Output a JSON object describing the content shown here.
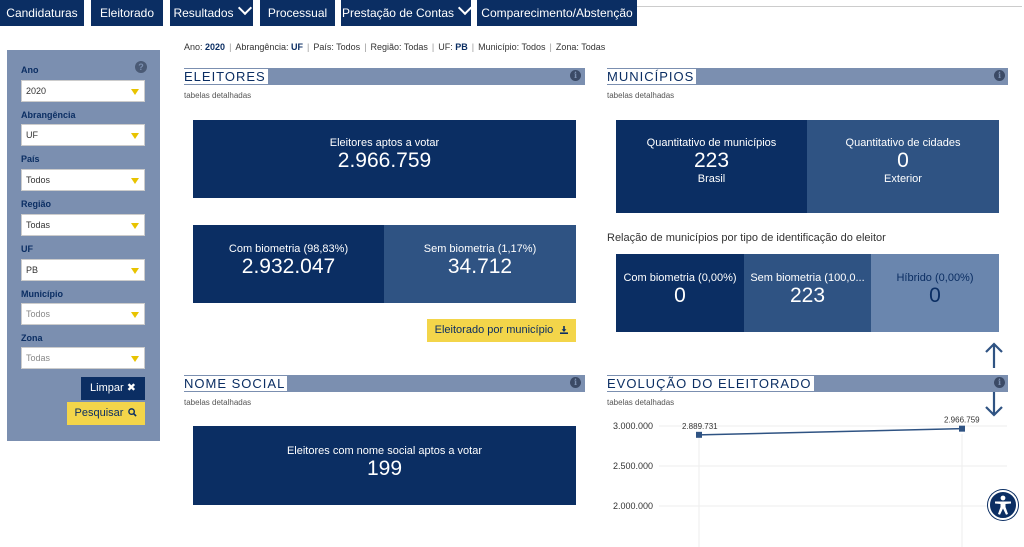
{
  "nav": {
    "items": [
      {
        "label": "Candidaturas",
        "dropdown": false
      },
      {
        "label": "Eleitorado",
        "dropdown": false
      },
      {
        "label": "Resultados",
        "dropdown": true
      },
      {
        "label": "Processual",
        "dropdown": false
      },
      {
        "label": "Prestação de Contas",
        "dropdown": true
      },
      {
        "label": "Comparecimento/Abstenção",
        "dropdown": false
      }
    ]
  },
  "sidebar": {
    "fields": [
      {
        "label": "Ano",
        "value": "2020"
      },
      {
        "label": "Abrangência",
        "value": "UF"
      },
      {
        "label": "País",
        "value": "Todos"
      },
      {
        "label": "Região",
        "value": "Todas"
      },
      {
        "label": "UF",
        "value": "PB"
      },
      {
        "label": "Município",
        "value": "Todos"
      },
      {
        "label": "Zona",
        "value": "Todas"
      }
    ],
    "limpar_label": "Limpar",
    "pesquisar_label": "Pesquisar"
  },
  "filters": {
    "ano_label": "Ano:",
    "ano_value": "2020",
    "abrangencia_label": "Abrangência:",
    "abrangencia_value": "UF",
    "pais": "País: Todos",
    "regiao": "Região: Todas",
    "uf_label": "UF:",
    "uf_value": "PB",
    "municipio": "Município: Todos",
    "zona": "Zona: Todas"
  },
  "eleitores": {
    "title": "ELEITORES",
    "subtitle": "tabelas detalhadas",
    "aptos_label": "Eleitores aptos a votar",
    "aptos_value": "2.966.759",
    "com_bio_label": "Com biometria (98,83%)",
    "com_bio_value": "2.932.047",
    "sem_bio_label": "Sem biometria (1,17%)",
    "sem_bio_value": "34.712",
    "button_label": "Eleitorado por município"
  },
  "municipios": {
    "title": "MUNICÍPIOS",
    "subtitle": "tabelas detalhadas",
    "qtd_mun_label": "Quantitativo de municípios",
    "qtd_mun_value": "223",
    "qtd_mun_sub": "Brasil",
    "qtd_cid_label": "Quantitativo de cidades",
    "qtd_cid_value": "0",
    "qtd_cid_sub": "Exterior",
    "relacao_text": "Relação de municípios por tipo de identificação do eleitor",
    "com_bio_label": "Com biometria (0,00%)",
    "com_bio_value": "0",
    "sem_bio_label": "Sem biometria (100,0...",
    "sem_bio_value": "223",
    "hibrido_label": "Híbrido (0,00%)",
    "hibrido_value": "0"
  },
  "nome_social": {
    "title": "NOME SOCIAL",
    "subtitle": "tabelas detalhadas",
    "label": "Eleitores com nome social aptos a votar",
    "value": "199"
  },
  "evolucao": {
    "title": "EVOLUÇÃO DO ELEITORADO",
    "subtitle": "tabelas detalhadas"
  },
  "chart_data": {
    "type": "line",
    "title": "",
    "xlabel": "",
    "ylabel": "",
    "ylim": [
      1800000,
      3000000
    ],
    "yticks": [
      3000000,
      2500000,
      2000000
    ],
    "ytick_labels": [
      "3.000.000",
      "2.500.000",
      "2.000.000"
    ],
    "series": [
      {
        "values": [
          2889731,
          2966759
        ],
        "labels": [
          "2.889.731",
          "2.966.759"
        ]
      }
    ],
    "color": "#2f5383",
    "grid": true
  },
  "colors": {
    "primary": "#0b2e63",
    "secondary": "#2f5383",
    "sidebar": "#7b8fb0",
    "accent": "#f3d54a"
  }
}
